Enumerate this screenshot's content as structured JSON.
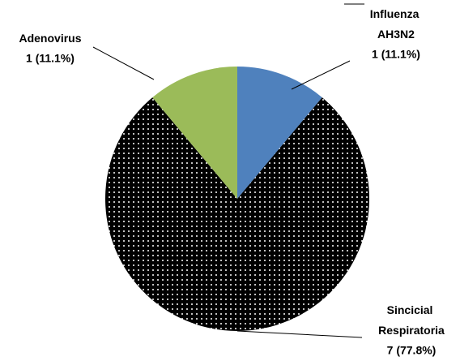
{
  "chart_data": {
    "type": "pie",
    "categories": [
      "Influenza AH3N2",
      "Sincicial Respiratoria",
      "Adenovirus"
    ],
    "values": [
      1,
      7,
      1
    ],
    "value_labels": [
      "1 (11.1%)",
      "7 (77.8%)",
      "1 (11.1%)"
    ],
    "colors": [
      "#4f81bd",
      "#000000",
      "#9bbb59"
    ],
    "patterns": [
      null,
      "dots",
      null
    ]
  }
}
